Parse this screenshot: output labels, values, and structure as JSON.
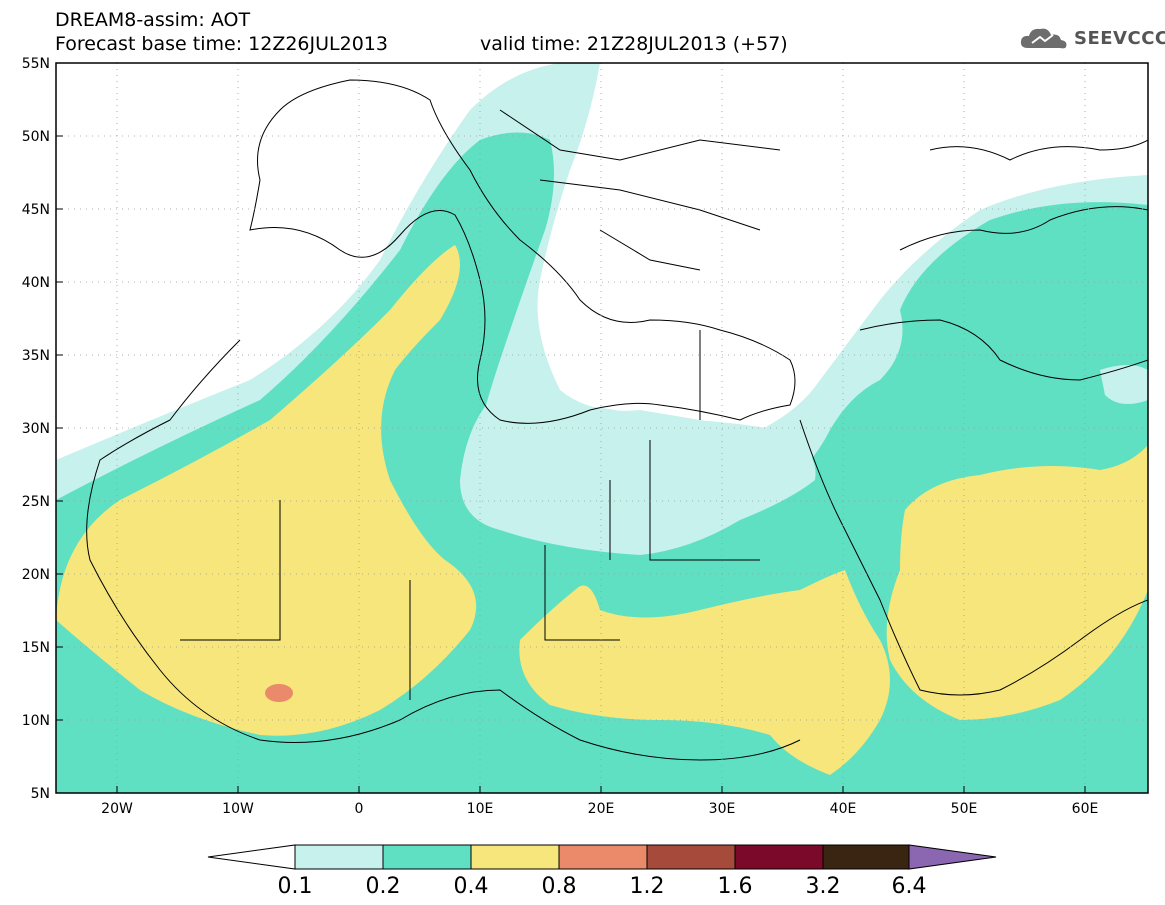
{
  "header": {
    "line1": "DREAM8-assim: AOT",
    "line2": "Forecast base time: 12Z26JUL2013",
    "valid": "valid time: 21Z28JUL2013 (+57)"
  },
  "logo": {
    "text": "SEEVCCC",
    "icon": "cloud-icon"
  },
  "map": {
    "lat_labels": [
      "55N",
      "50N",
      "45N",
      "40N",
      "35N",
      "30N",
      "25N",
      "20N",
      "15N",
      "10N",
      "5N"
    ],
    "lon_labels": [
      "20W",
      "10W",
      "0",
      "10E",
      "20E",
      "30E",
      "40E",
      "50E",
      "60E"
    ],
    "colors": {
      "c1": "#c6f1ec",
      "c2": "#5fe0c3",
      "c3": "#f6e67b",
      "c4": "#ea8a6a",
      "c5": "#a64b3c",
      "c6": "#7b0a2a",
      "c7": "#3a2412",
      "c8": "#8a67b0"
    }
  },
  "legend": {
    "labels": [
      "0.1",
      "0.2",
      "0.4",
      "0.8",
      "1.2",
      "1.6",
      "3.2",
      "6.4"
    ]
  }
}
